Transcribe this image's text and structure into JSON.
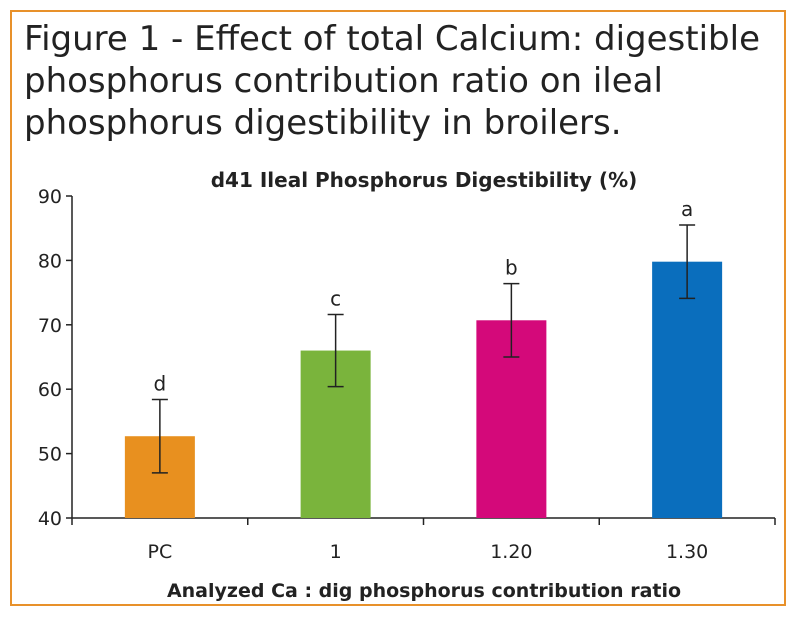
{
  "figure": {
    "title": "Figure 1 - Effect of total Calcium: digestible phosphorus contribution ratio on ileal phosphorus digestibility in broilers.",
    "border_color": "#e8912a"
  },
  "chart_data": {
    "type": "bar",
    "title": "d41 Ileal Phosphorus Digestibility (%)",
    "xlabel": "Analyzed Ca : dig phosphorus contribution ratio",
    "ylabel": "",
    "ylim": [
      40,
      90
    ],
    "yticks": [
      40,
      50,
      60,
      70,
      80,
      90
    ],
    "categories": [
      "PC",
      "1",
      "1.20",
      "1.30"
    ],
    "values": [
      52.7,
      66.0,
      70.7,
      79.8
    ],
    "error": [
      5.7,
      5.6,
      5.7,
      5.7
    ],
    "significance": [
      "d",
      "c",
      "b",
      "a"
    ],
    "colors": [
      "#e8901f",
      "#7ab43c",
      "#d4097a",
      "#0a6ebd"
    ],
    "grid": false,
    "legend": "none"
  }
}
